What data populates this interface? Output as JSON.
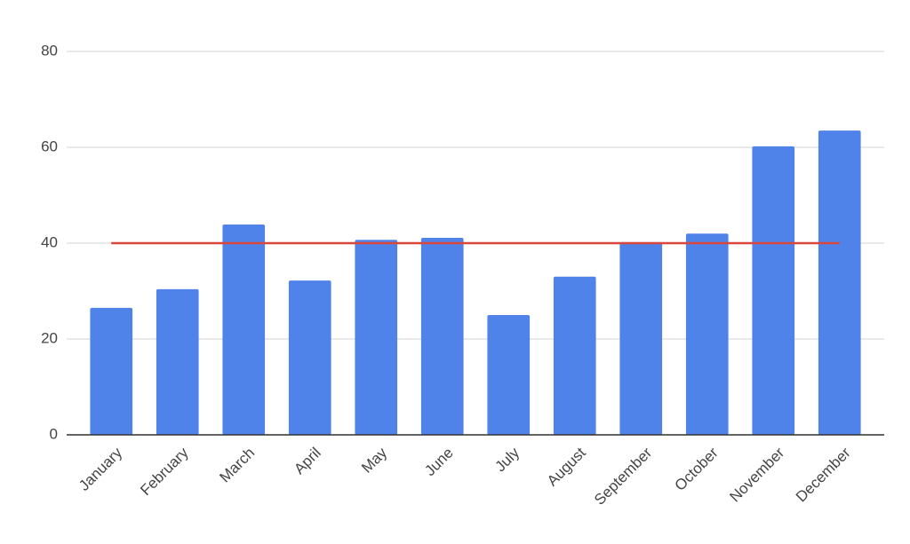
{
  "chart_data": {
    "type": "bar",
    "categories": [
      "January",
      "February",
      "March",
      "April",
      "May",
      "June",
      "July",
      "August",
      "September",
      "October",
      "November",
      "December"
    ],
    "series": [
      {
        "type": "bar",
        "color": "#5083e9",
        "values": [
          26.5,
          30.4,
          43.9,
          32.2,
          40.7,
          41.1,
          25,
          33,
          40.2,
          42,
          60.2,
          63.5
        ]
      },
      {
        "type": "line",
        "color": "#d9463a",
        "values": [
          40,
          40,
          40,
          40,
          40,
          40,
          40,
          40,
          40,
          40,
          40,
          40
        ]
      }
    ],
    "ylim": [
      0,
      80
    ],
    "yticks": [
      0,
      20,
      40,
      60,
      80
    ],
    "grid": true
  }
}
